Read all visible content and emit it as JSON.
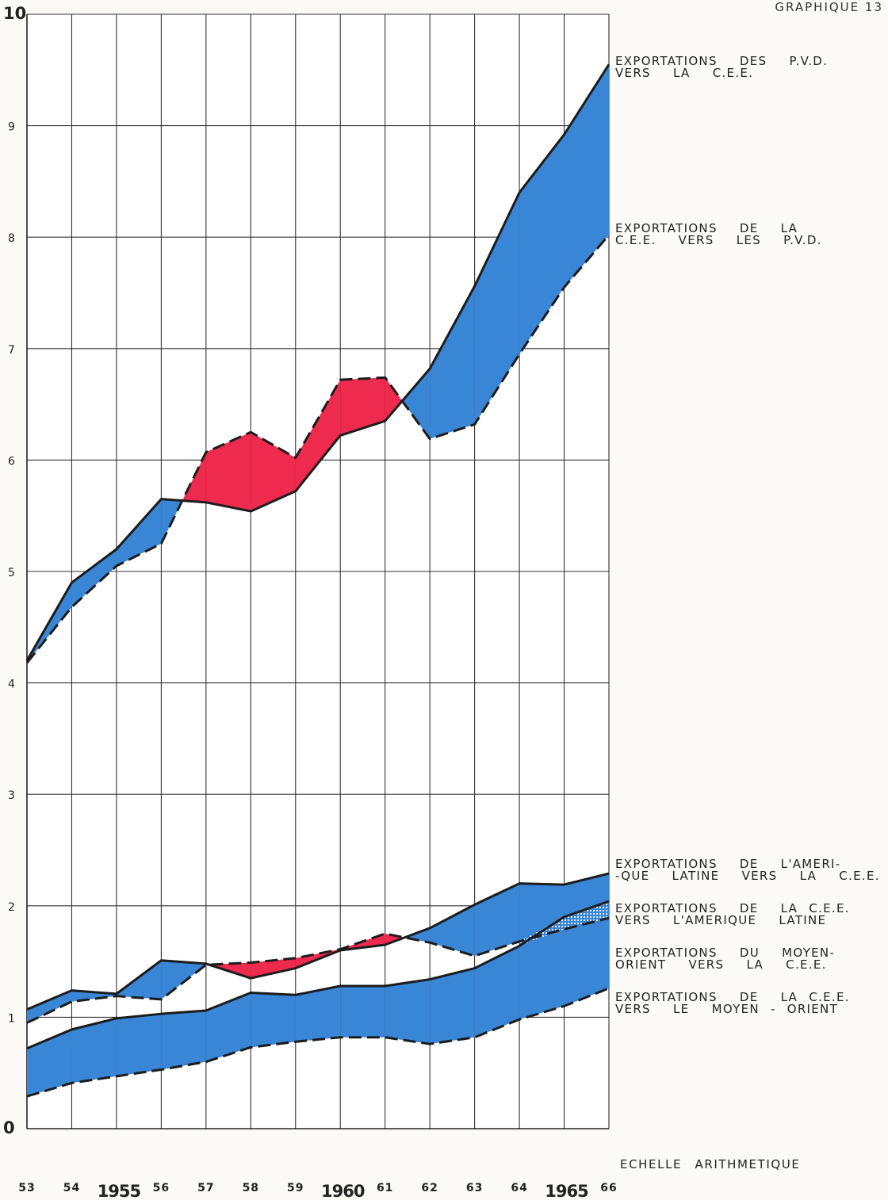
{
  "header": {
    "corner_label": "GRAPHIQUE 13"
  },
  "chart_data": {
    "type": "area",
    "scale_note": "ECHELLE ARITHMETIQUE",
    "x": [
      1953,
      1954,
      1955,
      1956,
      1957,
      1958,
      1959,
      1960,
      1961,
      1962,
      1963,
      1964,
      1965,
      1966
    ],
    "x_tick_labels": [
      "53",
      "54",
      "1955",
      "56",
      "57",
      "58",
      "59",
      "1960",
      "61",
      "62",
      "63",
      "64",
      "1965",
      "66"
    ],
    "xlim": [
      1953,
      1966
    ],
    "ylim": [
      0,
      10
    ],
    "y_ticks": [
      "0",
      "1",
      "2",
      "3",
      "4",
      "5",
      "6",
      "7",
      "8",
      "9",
      "10"
    ],
    "grid": true,
    "legend": "right",
    "colors": {
      "surplus": "#3a86d6",
      "deficit": "#ee2a4e",
      "hatched": "#9cc6ee"
    },
    "series": [
      {
        "name": "EXPORTATIONS DES P.V.D. VERS LA C.E.E.",
        "style": "solid",
        "values": [
          4.2,
          4.9,
          5.2,
          5.65,
          5.62,
          5.54,
          5.72,
          6.22,
          6.35,
          6.82,
          7.56,
          8.4,
          8.92,
          9.55
        ]
      },
      {
        "name": "EXPORTATIONS DE LA C.E.E. VERS LES P.V.D.",
        "style": "dashed",
        "values": [
          4.18,
          4.68,
          5.05,
          5.25,
          6.07,
          6.25,
          6.02,
          6.72,
          6.74,
          6.19,
          6.32,
          6.95,
          7.55,
          8.02
        ]
      },
      {
        "name": "EXPORTATIONS DE L'AMERI- -QUE LATINE VERS LA C.E.E.",
        "style": "solid",
        "values": [
          1.07,
          1.24,
          1.21,
          1.51,
          1.48,
          1.35,
          1.44,
          1.6,
          1.65,
          1.8,
          2.01,
          2.2,
          2.19,
          2.29
        ]
      },
      {
        "name": "EXPORTATIONS DE LA C.E.E. VERS L'AMERIQUE LATINE",
        "style": "dashed",
        "values": [
          0.95,
          1.14,
          1.19,
          1.16,
          1.47,
          1.49,
          1.53,
          1.61,
          1.75,
          1.67,
          1.55,
          1.68,
          1.79,
          1.89
        ]
      },
      {
        "name": "EXPORTATIONS DU MOYEN- ORIENT VERS LA C.E.E.",
        "style": "solid",
        "values": [
          0.72,
          0.89,
          0.99,
          1.03,
          1.06,
          1.22,
          1.2,
          1.28,
          1.28,
          1.34,
          1.44,
          1.64,
          1.9,
          2.04
        ]
      },
      {
        "name": "EXPORTATIONS DE LA C.E.E. VERS LE MOYEN - ORIENT",
        "style": "dashed",
        "values": [
          0.29,
          0.41,
          0.47,
          0.53,
          0.6,
          0.73,
          0.78,
          0.82,
          0.82,
          0.76,
          0.82,
          0.98,
          1.1,
          1.26
        ]
      }
    ],
    "legend_labels": [
      {
        "lines": [
          "EXPORTATIONS  DES  P.V.D.",
          "VERS  LA  C.E.E."
        ],
        "y_value": 9.6
      },
      {
        "lines": [
          "EXPORTATIONS  DE  LA",
          "C.E.E.  VERS  LES  P.V.D."
        ],
        "y_value": 8.1
      },
      {
        "lines": [
          "EXPORTATIONS  DE  L'AMERI-",
          "-QUE  LATINE  VERS  LA  C.E.E."
        ],
        "y_value": 2.4
      },
      {
        "lines": [
          "EXPORTATIONS  DE  LA C.E.E.",
          "VERS  L'AMERIQUE  LATINE"
        ],
        "y_value": 2.0
      },
      {
        "lines": [
          "EXPORTATIONS  DU  MOYEN-",
          "ORIENT  VERS  LA  C.E.E."
        ],
        "y_value": 1.6
      },
      {
        "lines": [
          "EXPORTATIONS  DE  LA C.E.E.",
          "VERS  LE  MOYEN - ORIENT"
        ],
        "y_value": 1.2
      }
    ]
  }
}
